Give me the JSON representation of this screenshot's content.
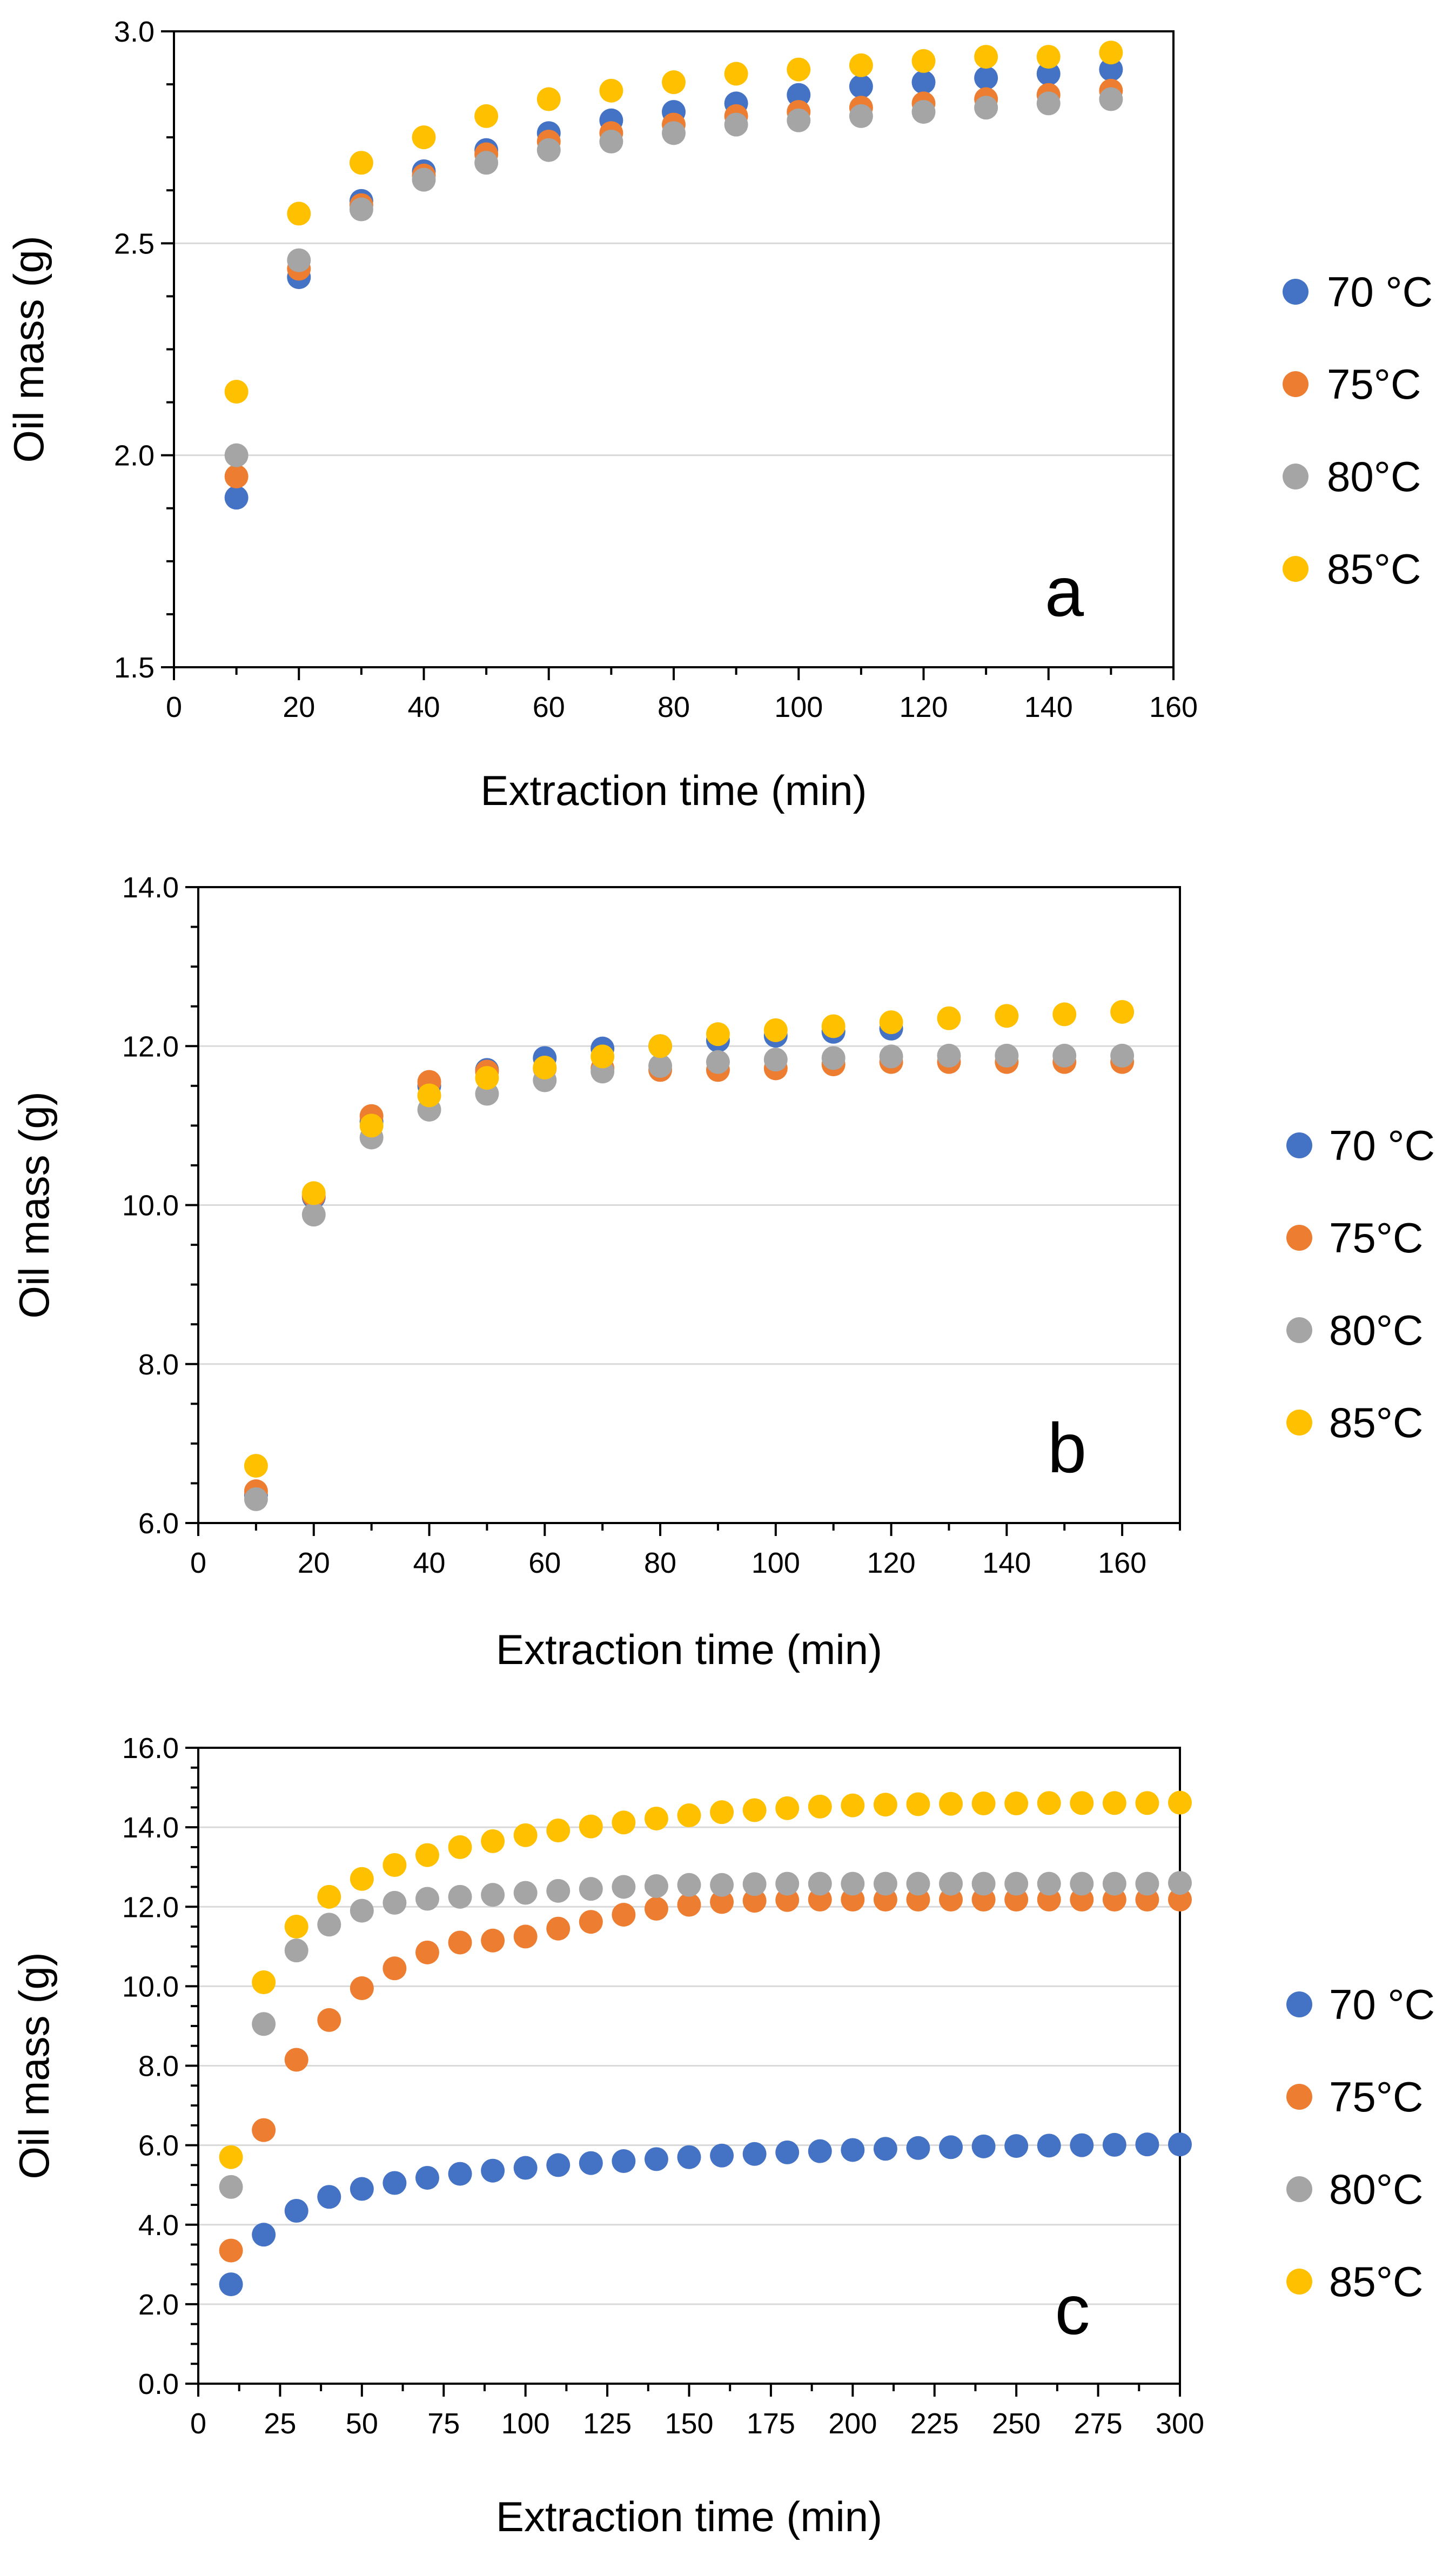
{
  "chart_data": [
    {
      "type": "scatter",
      "panel_label": "a",
      "xlabel": "Extraction time (min)",
      "ylabel": "Oil mass (g)",
      "xlim": [
        0,
        160
      ],
      "ylim": [
        1.5,
        3.0
      ],
      "xticks": [
        0,
        20,
        40,
        60,
        80,
        100,
        120,
        140,
        160
      ],
      "yticks": [
        1.5,
        2.0,
        2.5,
        3.0
      ],
      "ytick_decimals": 1,
      "grid": "horizontal",
      "legend": "right",
      "x": [
        10,
        20,
        30,
        40,
        50,
        60,
        70,
        80,
        90,
        100,
        110,
        120,
        130,
        140,
        150
      ],
      "series": [
        {
          "name": "70 °C",
          "color": "#4472C4",
          "values": [
            1.9,
            2.42,
            2.6,
            2.67,
            2.72,
            2.76,
            2.79,
            2.81,
            2.83,
            2.85,
            2.87,
            2.88,
            2.89,
            2.9,
            2.91
          ]
        },
        {
          "name": "75°C",
          "color": "#ED7D31",
          "values": [
            1.95,
            2.44,
            2.59,
            2.66,
            2.71,
            2.74,
            2.76,
            2.78,
            2.8,
            2.81,
            2.82,
            2.83,
            2.84,
            2.85,
            2.86
          ]
        },
        {
          "name": "80°C",
          "color": "#A5A5A5",
          "values": [
            2.0,
            2.46,
            2.58,
            2.65,
            2.69,
            2.72,
            2.74,
            2.76,
            2.78,
            2.79,
            2.8,
            2.81,
            2.82,
            2.83,
            2.84
          ]
        },
        {
          "name": "85°C",
          "color": "#FFC000",
          "values": [
            2.15,
            2.57,
            2.69,
            2.75,
            2.8,
            2.84,
            2.86,
            2.88,
            2.9,
            2.91,
            2.92,
            2.93,
            2.94,
            2.94,
            2.95
          ]
        }
      ]
    },
    {
      "type": "scatter",
      "panel_label": "b",
      "xlabel": "Extraction time (min)",
      "ylabel": "Oil mass (g)",
      "xlim": [
        0,
        170
      ],
      "ylim": [
        6.0,
        14.0
      ],
      "xticks": [
        0,
        20,
        40,
        60,
        80,
        100,
        120,
        140,
        160
      ],
      "yticks": [
        6.0,
        8.0,
        10.0,
        12.0,
        14.0
      ],
      "ytick_decimals": 1,
      "grid": "horizontal",
      "legend": "right",
      "x": [
        10,
        20,
        30,
        40,
        50,
        60,
        70,
        80,
        90,
        100,
        110,
        120,
        130,
        140,
        150,
        160
      ],
      "series": [
        {
          "name": "70 °C",
          "color": "#4472C4",
          "values": [
            6.35,
            10.1,
            11.05,
            11.5,
            11.7,
            11.85,
            11.97,
            12.0,
            12.07,
            12.13,
            12.18,
            12.22,
            null,
            null,
            null,
            null
          ]
        },
        {
          "name": "75°C",
          "color": "#ED7D31",
          "values": [
            6.4,
            10.12,
            11.12,
            11.55,
            11.68,
            11.72,
            11.72,
            11.7,
            11.7,
            11.72,
            11.77,
            11.8,
            11.8,
            11.8,
            11.8,
            11.8
          ]
        },
        {
          "name": "80°C",
          "color": "#A5A5A5",
          "values": [
            6.3,
            9.88,
            10.85,
            11.2,
            11.4,
            11.57,
            11.68,
            11.75,
            11.8,
            11.83,
            11.85,
            11.87,
            11.88,
            11.88,
            11.88,
            11.88
          ]
        },
        {
          "name": "85°C",
          "color": "#FFC000",
          "values": [
            6.72,
            10.15,
            11.0,
            11.38,
            11.6,
            11.73,
            11.87,
            12.0,
            12.15,
            12.2,
            12.25,
            12.3,
            12.35,
            12.38,
            12.4,
            12.43
          ]
        }
      ]
    },
    {
      "type": "scatter",
      "panel_label": "c",
      "xlabel": "Extraction time (min)",
      "ylabel": "Oil mass (g)",
      "xlim": [
        0,
        300
      ],
      "ylim": [
        0.0,
        16.0
      ],
      "xticks": [
        0,
        25,
        50,
        75,
        100,
        125,
        150,
        175,
        200,
        225,
        250,
        275,
        300
      ],
      "yticks": [
        0.0,
        2.0,
        4.0,
        6.0,
        8.0,
        10.0,
        12.0,
        14.0,
        16.0
      ],
      "ytick_decimals": 1,
      "grid": "horizontal",
      "legend": "right",
      "x": [
        10,
        20,
        30,
        40,
        50,
        60,
        70,
        80,
        90,
        100,
        110,
        120,
        130,
        140,
        150,
        160,
        170,
        180,
        190,
        200,
        210,
        220,
        230,
        240,
        250,
        260,
        270,
        280,
        290,
        300
      ],
      "series": [
        {
          "name": "70 °C",
          "color": "#4472C4",
          "values": [
            2.5,
            3.75,
            4.35,
            4.7,
            4.9,
            5.05,
            5.18,
            5.28,
            5.36,
            5.43,
            5.5,
            5.55,
            5.6,
            5.65,
            5.7,
            5.74,
            5.78,
            5.82,
            5.85,
            5.88,
            5.91,
            5.93,
            5.95,
            5.97,
            5.98,
            5.99,
            6.0,
            6.01,
            6.02,
            6.02
          ]
        },
        {
          "name": "75°C",
          "color": "#ED7D31",
          "values": [
            3.35,
            6.38,
            8.15,
            9.15,
            9.95,
            10.45,
            10.85,
            11.1,
            11.15,
            11.25,
            11.45,
            11.62,
            11.8,
            11.95,
            12.05,
            12.12,
            12.15,
            12.17,
            12.18,
            12.18,
            12.18,
            12.18,
            12.18,
            12.18,
            12.18,
            12.18,
            12.18,
            12.18,
            12.18,
            12.18
          ]
        },
        {
          "name": "80°C",
          "color": "#A5A5A5",
          "values": [
            4.95,
            9.05,
            10.9,
            11.55,
            11.9,
            12.1,
            12.2,
            12.25,
            12.3,
            12.35,
            12.4,
            12.45,
            12.5,
            12.52,
            12.55,
            12.55,
            12.57,
            12.58,
            12.58,
            12.58,
            12.58,
            12.58,
            12.58,
            12.58,
            12.58,
            12.58,
            12.58,
            12.58,
            12.58,
            12.6
          ]
        },
        {
          "name": "85°C",
          "color": "#FFC000",
          "values": [
            5.7,
            10.1,
            11.5,
            12.25,
            12.7,
            13.05,
            13.3,
            13.5,
            13.65,
            13.8,
            13.92,
            14.02,
            14.12,
            14.22,
            14.3,
            14.38,
            14.43,
            14.48,
            14.52,
            14.55,
            14.57,
            14.58,
            14.59,
            14.6,
            14.6,
            14.61,
            14.61,
            14.61,
            14.61,
            14.62
          ]
        }
      ]
    }
  ]
}
